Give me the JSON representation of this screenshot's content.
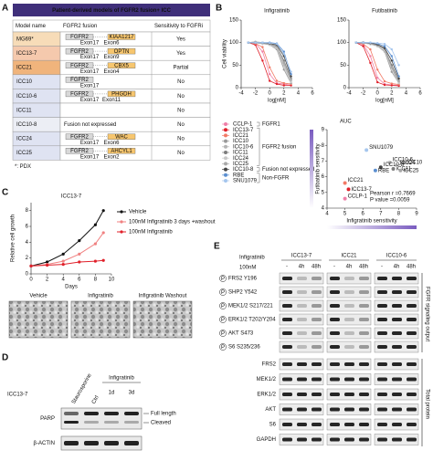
{
  "panels": {
    "A": {
      "label": "A",
      "title": "Patient-derived models of FGFR2 fusion+ ICC",
      "header": [
        "Model name",
        "FGFR2 fusion",
        "Sensitivity to FGFRi"
      ],
      "rows": [
        {
          "model": "MG69*",
          "color": "#f7dcb8",
          "fusion": {
            "gene": "FGFR2",
            "exon": "Exon17",
            "partner": "KIAA1217",
            "partner_exon": "Exon6"
          },
          "sensitivity": "Yes"
        },
        {
          "model": "ICC13-7",
          "color": "#f5c9ad",
          "fusion": {
            "gene": "FGFR2",
            "exon": "Exon17",
            "partner": "OPTN",
            "partner_exon": "Exon9"
          },
          "sensitivity": "Yes"
        },
        {
          "model": "ICC21",
          "color": "#f0b47c",
          "fusion": {
            "gene": "FGFR2",
            "exon": "Exon17",
            "partner": "CBX5",
            "partner_exon": "Exon4"
          },
          "sensitivity": "Partial"
        },
        {
          "model": "ICC10",
          "color": "#dfe3f2",
          "fusion": {
            "gene": "FGFR2",
            "exon": "Exon17"
          },
          "sensitivity": "No"
        },
        {
          "model": "ICC10-6",
          "color": "#dfe3f2",
          "fusion": {
            "gene": "FGFR2",
            "exon": "Exon17",
            "partner": "PHGDH",
            "partner_exon": "Exon11"
          },
          "sensitivity": "No"
        },
        {
          "model": "ICC11",
          "color": "#dfe3f2",
          "fusion": null,
          "sensitivity": "No"
        },
        {
          "model": "ICC10-8",
          "color": "#eceef5",
          "fusion": "Fusion not expressed",
          "sensitivity": "No"
        },
        {
          "model": "ICC24",
          "color": "#dfe3f2",
          "fusion": {
            "gene": "FGFR2",
            "exon": "Exon17",
            "partner": "WAC",
            "partner_exon": "Exon6"
          },
          "sensitivity": "No"
        },
        {
          "model": "ICC25",
          "color": "#dfe3f2",
          "fusion": {
            "gene": "FGFR2",
            "exon": "Exon17",
            "partner": "AHCYL1",
            "partner_exon": "Exon2"
          },
          "sensitivity": "No"
        }
      ],
      "footnote": "*: PDX"
    },
    "B": {
      "label": "B",
      "plots": [
        "Infigratinib",
        "Futibatinib"
      ],
      "ylabel": "Cell viability",
      "xlabel": "log[nM]",
      "x": [
        -3,
        -2,
        -1,
        0,
        1,
        2,
        3
      ],
      "xlim": [
        -4,
        6
      ],
      "xticks": [
        -4,
        -2,
        0,
        2,
        4,
        6
      ],
      "ylim": [
        0,
        150
      ],
      "yticks": [
        0,
        50,
        100,
        150
      ],
      "groups": [
        {
          "label": "FGFR1",
          "members": [
            {
              "name": "CCLP-1",
              "color": "#ef7fa8",
              "values": [
                [
                  100,
                  98,
                  80,
                  30,
                  10,
                  8,
                  5
                ],
                [
                  100,
                  96,
                  70,
                  22,
                  8,
                  6,
                  5
                ]
              ],
              "auc": [
                5.0,
                4.6
              ]
            }
          ]
        },
        {
          "label": "FGFR2 fusion",
          "members": [
            {
              "name": "ICC13-7",
              "color": "#e0202a",
              "values": [
                [
                  100,
                  95,
                  60,
                  15,
                  8,
                  5,
                  5
                ],
                [
                  100,
                  92,
                  55,
                  12,
                  6,
                  5,
                  4
                ]
              ],
              "auc": [
                5.2,
                5.2
              ]
            },
            {
              "name": "ICC21",
              "color": "#f27a66",
              "values": [
                [
                  100,
                  98,
                  90,
                  45,
                  15,
                  10,
                  8
                ],
                [
                  100,
                  97,
                  85,
                  40,
                  14,
                  9,
                  7
                ]
              ],
              "auc": [
                5.0,
                5.6
              ]
            },
            {
              "name": "ICC10",
              "color": "#9a9a9a",
              "values": [
                [
                  100,
                  100,
                  98,
                  95,
                  85,
                  40,
                  10
                ],
                [
                  100,
                  100,
                  97,
                  92,
                  80,
                  35,
                  10
                ]
              ],
              "auc": [
                8.3,
                6.9
              ]
            },
            {
              "name": "ICC10-6",
              "color": "#b4b4b4",
              "values": [
                [
                  100,
                  102,
                  100,
                  97,
                  90,
                  50,
                  15
                ],
                [
                  100,
                  101,
                  99,
                  95,
                  85,
                  45,
                  12
                ]
              ],
              "auc": [
                7.5,
                6.9
              ]
            },
            {
              "name": "ICC11",
              "color": "#7d7d7d",
              "values": [
                [
                  100,
                  100,
                  98,
                  96,
                  92,
                  60,
                  20
                ],
                [
                  100,
                  99,
                  97,
                  93,
                  86,
                  50,
                  15
                ]
              ],
              "auc": [
                7.7,
                6.5
              ]
            },
            {
              "name": "ICC24",
              "color": "#c8c8c8",
              "values": [
                [
                  100,
                  99,
                  97,
                  95,
                  88,
                  45,
                  12
                ],
                [
                  100,
                  99,
                  96,
                  92,
                  82,
                  40,
                  10
                ]
              ],
              "auc": [
                7.9,
                6.7
              ]
            },
            {
              "name": "ICC25",
              "color": "#a8a8a8",
              "values": [
                [
                  100,
                  101,
                  99,
                  97,
                  93,
                  55,
                  18
                ],
                [
                  100,
                  100,
                  98,
                  94,
                  85,
                  45,
                  14
                ]
              ],
              "auc": [
                8.1,
                6.4
              ]
            }
          ]
        },
        {
          "label": "Fusion not expressed",
          "members": [
            {
              "name": "ICC10-8",
              "color": "#444444",
              "values": [
                [
                  100,
                  100,
                  100,
                  98,
                  95,
                  70,
                  25
                ],
                [
                  100,
                  100,
                  99,
                  96,
                  88,
                  60,
                  20
                ]
              ],
              "auc": [
                7.0,
                6.6
              ]
            }
          ]
        },
        {
          "label": "Non-FGFR",
          "members": [
            {
              "name": "RBE",
              "color": "#5b8fd0",
              "values": [
                [
                  100,
                  100,
                  100,
                  100,
                  98,
                  80,
                  30
                ],
                [
                  100,
                  100,
                  100,
                  98,
                  92,
                  70,
                  25
                ]
              ],
              "auc": [
                6.7,
                6.4
              ]
            },
            {
              "name": "SNU1079",
              "color": "#a5c6ee",
              "values": [
                [
                  100,
                  100,
                  100,
                  99,
                  97,
                  75,
                  35
                ],
                [
                  100,
                  100,
                  100,
                  99,
                  97,
                  85,
                  50
                ]
              ],
              "auc": [
                6.2,
                7.7
              ]
            }
          ]
        }
      ],
      "auc": {
        "title": "AUC",
        "xlabel": "Infigratinib sensitivity",
        "ylabel": "Futibatinib sensitivity",
        "xlim": [
          4,
          9
        ],
        "ylim": [
          4,
          9
        ],
        "xticks": [
          4,
          5,
          6,
          7,
          8,
          9
        ],
        "yticks": [
          4,
          5,
          6,
          7,
          8,
          9
        ],
        "stats": [
          "Pearson r =0.7669",
          "P value =0.0059"
        ]
      }
    },
    "C": {
      "label": "C",
      "title": "ICC13-7",
      "ylabel": "Relative cell growth",
      "xlabel": "Days",
      "x": [
        0,
        2,
        4,
        6,
        8,
        9
      ],
      "xlim": [
        0,
        10
      ],
      "xticks": [
        0,
        2,
        4,
        6,
        8,
        10
      ],
      "ylim": [
        0,
        9
      ],
      "yticks": [
        0,
        2,
        4,
        6,
        8
      ],
      "series": [
        {
          "name": "Vehicle",
          "color": "#111111",
          "values": [
            1,
            1.5,
            2.5,
            4.2,
            6.2,
            8
          ]
        },
        {
          "name": "100nM Infigratinib 3 days +washout",
          "color": "#f08080",
          "values": [
            1,
            1.2,
            1.6,
            2.5,
            3.8,
            5.2
          ]
        },
        {
          "name": "100nM Infigratinib",
          "color": "#e0202a",
          "values": [
            1,
            1.1,
            1.2,
            1.5,
            1.6,
            1.7
          ]
        }
      ],
      "images": [
        "Vehicle",
        "Infigratinib",
        "Infigratinib Washout"
      ]
    },
    "D": {
      "label": "D",
      "cell_line": "ICC13-7",
      "lanes": [
        "Staurosporine",
        "Ctrl"
      ],
      "treatment": "Infigratinib",
      "treatment_lanes": [
        "1d",
        "3d"
      ],
      "rows": [
        "PARP",
        "β-ACTIN"
      ],
      "bands": [
        "Full length",
        "Cleaved"
      ]
    },
    "E": {
      "label": "E",
      "drug": "Infigratinib",
      "dose": "100nM",
      "cell_lines": [
        "ICC13-7",
        "ICC21",
        "ICC10-6"
      ],
      "lanes": [
        "-",
        "4h",
        "48h"
      ],
      "phospho_symbol": "P",
      "phospho": {
        "label": "FGFR signaling output",
        "rows": [
          "FRS2 Y196",
          "SHP2 Y542",
          "MEK1/2 S217/221",
          "ERK1/2 T202/Y204",
          "AKT S473",
          "S6 S235/236"
        ]
      },
      "total": {
        "label": "Total protein",
        "rows": [
          "FRS2",
          "MEK1/2",
          "ERK1/2",
          "AKT",
          "S6",
          "GAPDH"
        ]
      }
    }
  }
}
